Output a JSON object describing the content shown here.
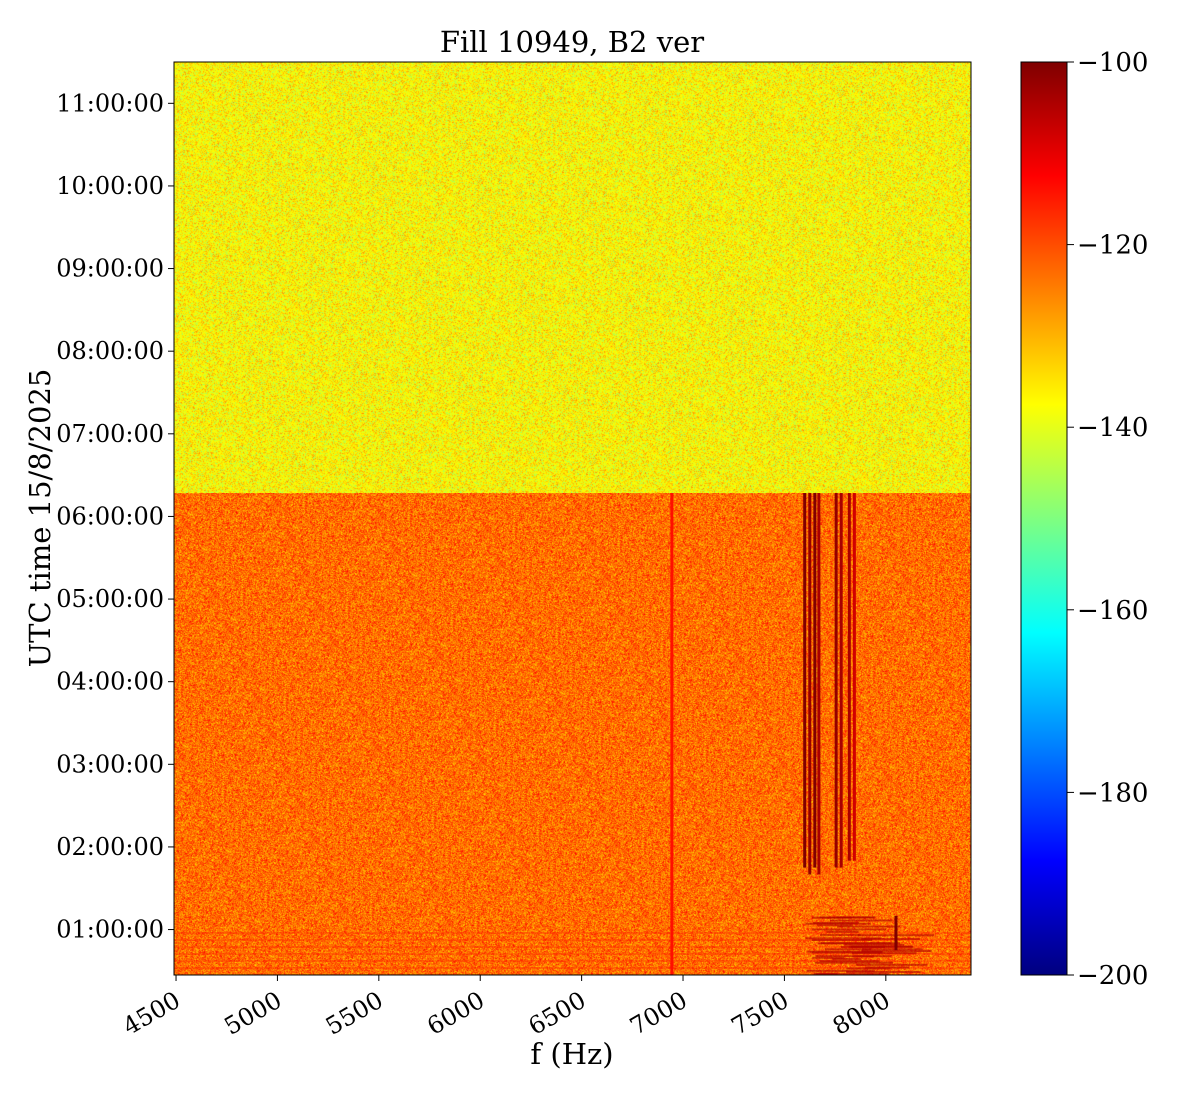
{
  "chart_data": {
    "type": "heatmap",
    "title": "Fill 10949, B2 ver",
    "xlabel": "f (Hz)",
    "ylabel": "UTC time 15/8/2025",
    "xlim": [
      4490,
      8420
    ],
    "ylim": [
      "00:27:00",
      "11:30:00"
    ],
    "x_ticks": [
      4500,
      5000,
      5500,
      6000,
      6500,
      7000,
      7500,
      8000
    ],
    "x_tick_labels": [
      "4500",
      "5000",
      "5500",
      "6000",
      "6500",
      "7000",
      "7500",
      "8000"
    ],
    "y_ticks": [
      "01:00:00",
      "02:00:00",
      "03:00:00",
      "04:00:00",
      "05:00:00",
      "06:00:00",
      "07:00:00",
      "08:00:00",
      "09:00:00",
      "10:00:00",
      "11:00:00"
    ],
    "colormap": "jet",
    "colorbar": {
      "range": [
        -200,
        -100
      ],
      "ticks": [
        -100,
        -120,
        -140,
        -160,
        -180,
        -200
      ],
      "tick_labels": [
        "−100",
        "−120",
        "−140",
        "−160",
        "−180",
        "−200"
      ]
    },
    "regions": [
      {
        "t_start": "06:17:00",
        "t_end": "11:30:00",
        "f_start": 4490,
        "f_end": 8420,
        "mean_level": -137
      },
      {
        "t_start": "00:27:00",
        "t_end": "06:17:00",
        "f_start": 4490,
        "f_end": 8420,
        "mean_level": -123
      }
    ],
    "lines": [
      {
        "f": 7600,
        "t_start": "01:45:00",
        "t_end": "06:17:00",
        "level": -100
      },
      {
        "f": 7625,
        "t_start": "01:40:00",
        "t_end": "06:17:00",
        "level": -102
      },
      {
        "f": 7650,
        "t_start": "01:45:00",
        "t_end": "06:17:00",
        "level": -100
      },
      {
        "f": 7670,
        "t_start": "01:40:00",
        "t_end": "06:17:00",
        "level": -104
      },
      {
        "f": 7755,
        "t_start": "01:45:00",
        "t_end": "06:17:00",
        "level": -102
      },
      {
        "f": 7780,
        "t_start": "01:45:00",
        "t_end": "06:17:00",
        "level": -104
      },
      {
        "f": 7820,
        "t_start": "01:50:00",
        "t_end": "06:17:00",
        "level": -104
      },
      {
        "f": 7845,
        "t_start": "01:50:00",
        "t_end": "06:17:00",
        "level": -108
      },
      {
        "f": 6945,
        "t_start": "00:27:00",
        "t_end": "06:17:00",
        "level": -114
      },
      {
        "f": 8050,
        "t_start": "00:45:00",
        "t_end": "01:10:00",
        "level": -100
      }
    ],
    "burst": {
      "f_start": 7600,
      "f_end": 8100,
      "t_start": "00:27:00",
      "t_end": "01:10:00",
      "level": -105
    }
  }
}
